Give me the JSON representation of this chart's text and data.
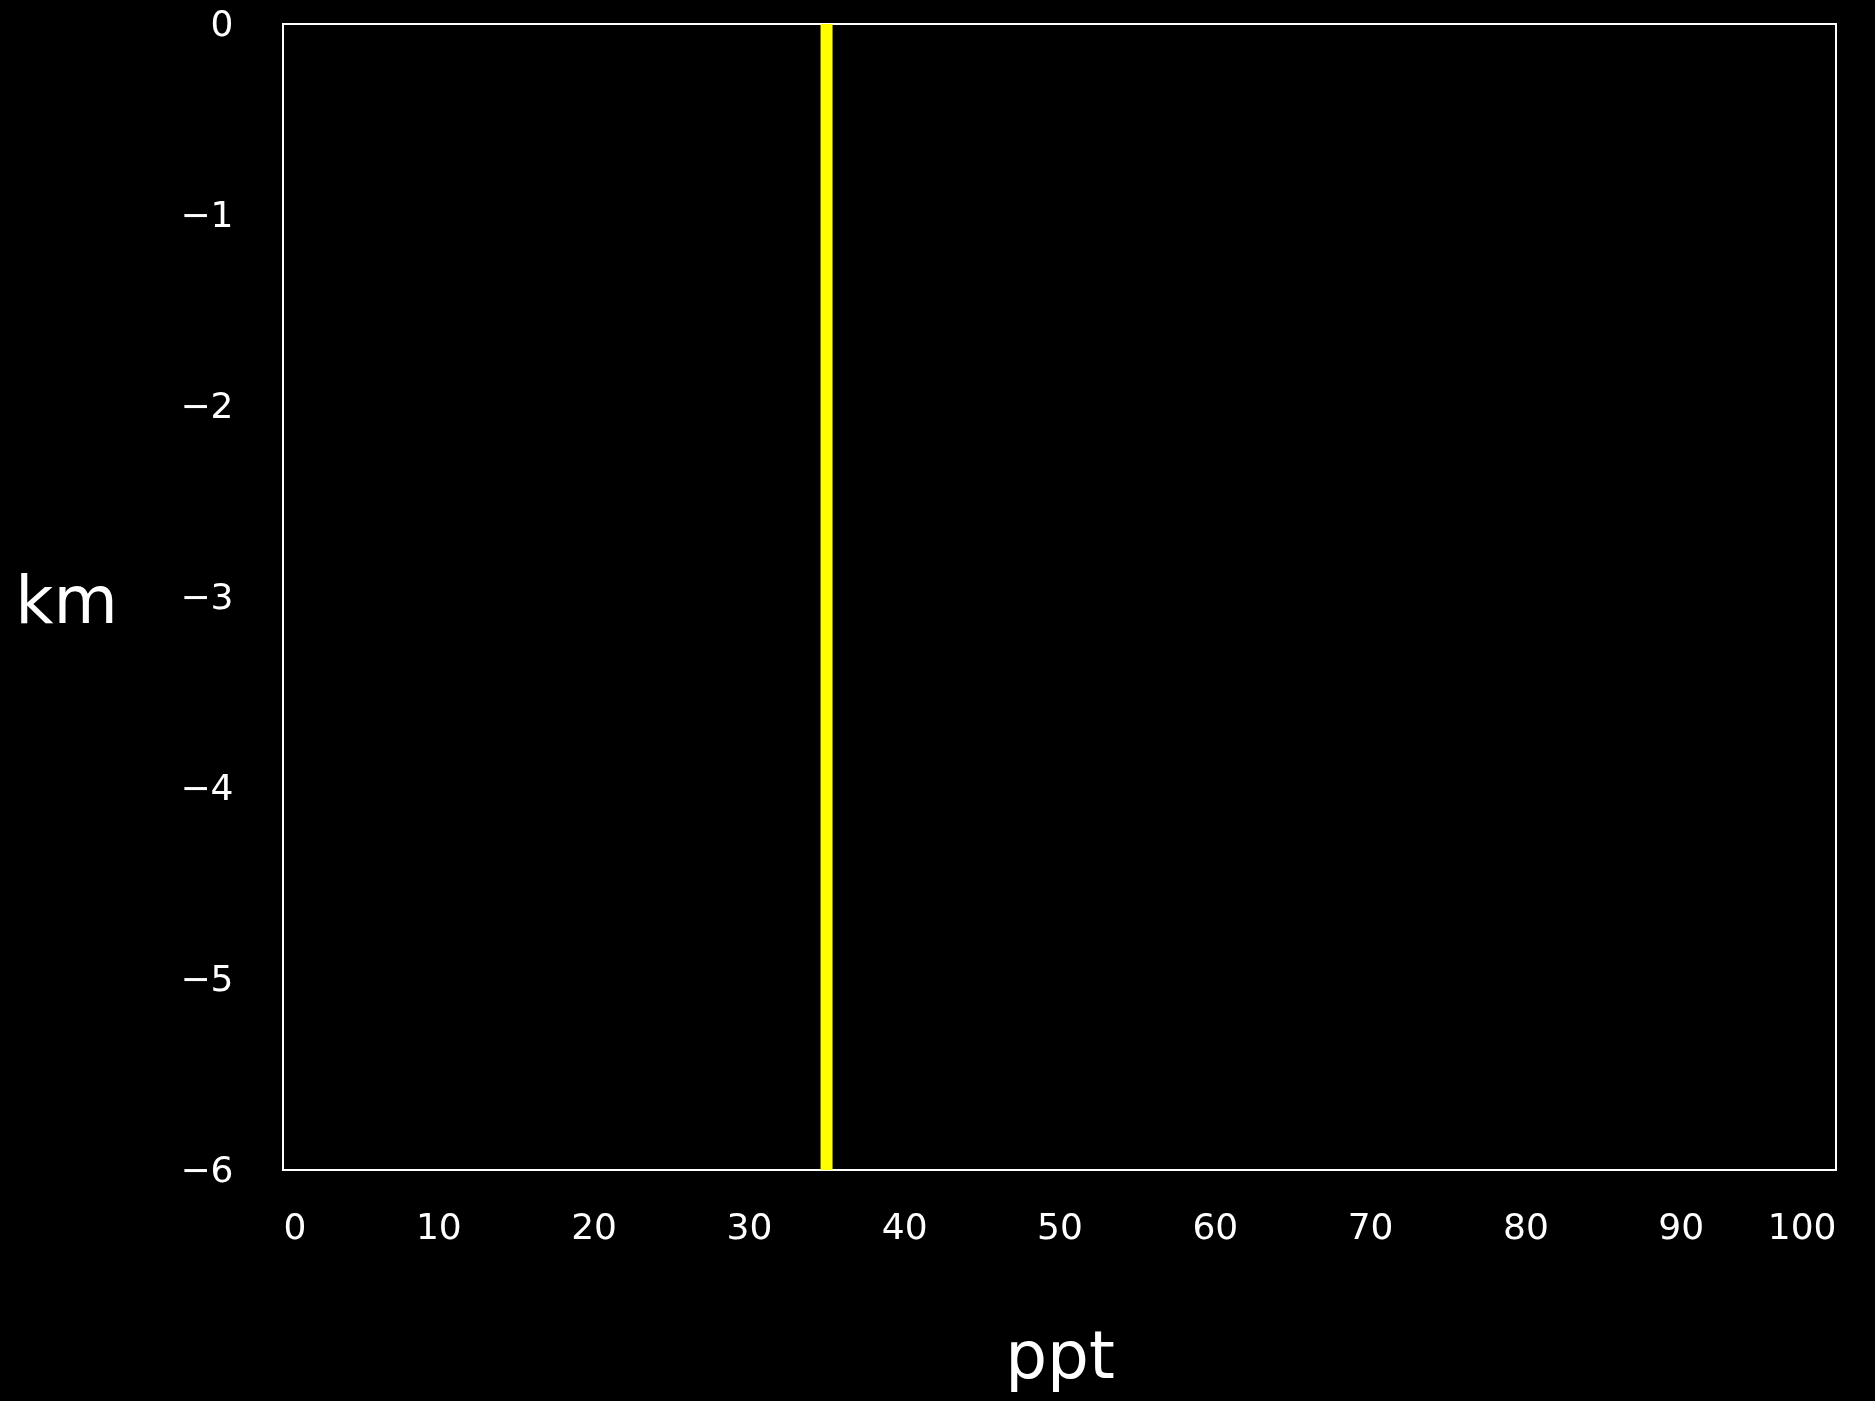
{
  "chart_data": {
    "type": "line",
    "xlabel": "ppt",
    "ylabel": "km",
    "series": [
      {
        "color": "#ffff00",
        "x": [
          35,
          35
        ],
        "values": [
          0,
          -6
        ]
      }
    ],
    "xlim": [
      0,
      100
    ],
    "xticks": [
      0,
      10,
      20,
      30,
      40,
      50,
      60,
      70,
      80,
      90,
      100
    ],
    "ylim": [
      -6,
      0
    ],
    "yticks": [
      0,
      -1,
      -2,
      -3,
      -4,
      -5,
      -6
    ]
  }
}
